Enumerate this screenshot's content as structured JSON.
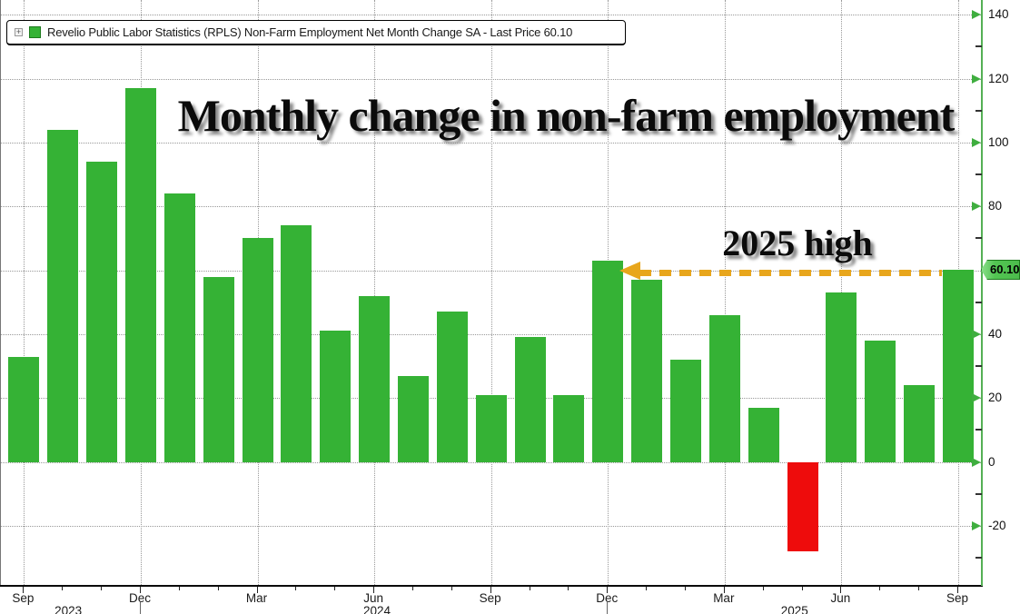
{
  "legend": {
    "expand_icon": "+",
    "label": "Revelio Public Labor Statistics (RPLS) Non-Farm Employment Net Month Change SA - Last Price 60.10"
  },
  "colors": {
    "positive_bar": "#35b235",
    "negative_bar": "#ee0c0c",
    "axis_green": "#55b055",
    "arrow_gold": "#e8a61c",
    "grid": "#999999",
    "badge_green": "#52c452"
  },
  "y_axis": {
    "last_price_label": "60.10",
    "major_ticks": [
      {
        "value": 140,
        "label": "140"
      },
      {
        "value": 120,
        "label": "120"
      },
      {
        "value": 100,
        "label": "100"
      },
      {
        "value": 80,
        "label": "80"
      },
      {
        "value": 60,
        "label": ""
      },
      {
        "value": 40,
        "label": "40"
      },
      {
        "value": 20,
        "label": "20"
      },
      {
        "value": 0,
        "label": "0"
      },
      {
        "value": -20,
        "label": "-20"
      }
    ],
    "minor_ticks": [
      130,
      110,
      90,
      70,
      50,
      30,
      10,
      -10,
      -30
    ]
  },
  "x_axis": {
    "tick_labels": [
      {
        "index": 0,
        "label": "Sep"
      },
      {
        "index": 3,
        "label": "Dec"
      },
      {
        "index": 6,
        "label": "Mar"
      },
      {
        "index": 9,
        "label": "Jun"
      },
      {
        "index": 12,
        "label": "Sep"
      },
      {
        "index": 15,
        "label": "Dec"
      },
      {
        "index": 18,
        "label": "Mar"
      },
      {
        "index": 21,
        "label": "Jun"
      },
      {
        "index": 24,
        "label": "Sep"
      }
    ],
    "year_labels": [
      {
        "index": 1.16,
        "label": "2023"
      },
      {
        "index": 9.09,
        "label": "2024"
      },
      {
        "index": 19.82,
        "label": "2025"
      }
    ],
    "year_separator_indices": [
      3,
      15
    ],
    "gridline_indices": [
      0,
      3,
      6,
      9,
      12,
      15,
      18,
      21,
      24
    ]
  },
  "chart_data": {
    "type": "bar",
    "title": "Monthly change in non-farm employment",
    "annotation": {
      "label": "2025 high",
      "points_to_level": 60.1
    },
    "x": [
      "Sep 2023",
      "Oct 2023",
      "Nov 2023",
      "Dec 2023",
      "Jan 2024",
      "Feb 2024",
      "Mar 2024",
      "Apr 2024",
      "May 2024",
      "Jun 2024",
      "Jul 2024",
      "Aug 2024",
      "Sep 2024",
      "Oct 2024",
      "Nov 2024",
      "Dec 2024",
      "Jan 2025",
      "Feb 2025",
      "Mar 2025",
      "Apr 2025",
      "May 2025",
      "Jun 2025",
      "Jul 2025",
      "Aug 2025",
      "Sep 2025"
    ],
    "series": [
      {
        "name": "RPLS Non-Farm Employment Net Month Change SA",
        "values": [
          33,
          104,
          94,
          117,
          84,
          58,
          70,
          74,
          41,
          52,
          27,
          47,
          21,
          39,
          21,
          63,
          57,
          32,
          46,
          17,
          -28,
          53,
          38,
          24,
          60.1
        ]
      }
    ],
    "last_price": 60.1,
    "ylim": [
      -38.5,
      144.6
    ],
    "grid": true,
    "legend_position": "top-left"
  }
}
